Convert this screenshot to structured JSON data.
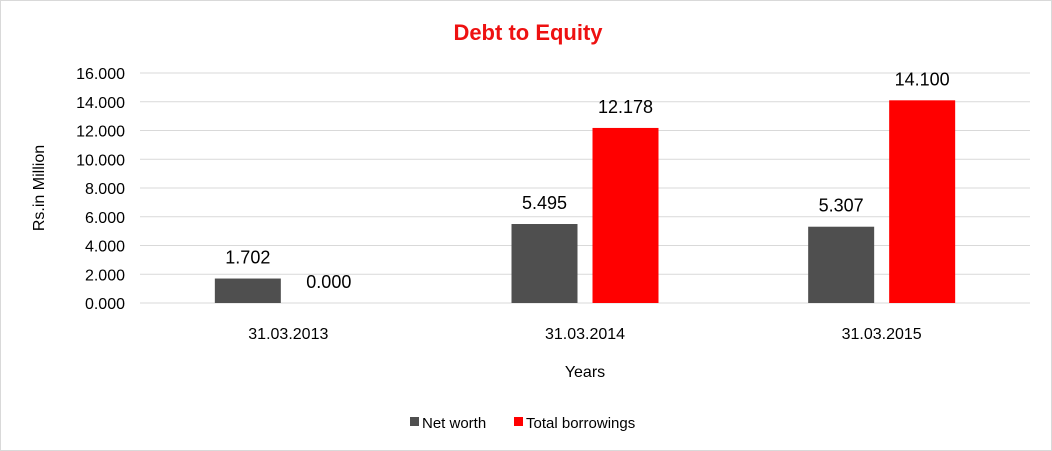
{
  "chart_data": {
    "type": "bar",
    "title": "Debt to Equity",
    "title_color": "#ee1111",
    "xlabel": "Years",
    "ylabel": "Rs.in Million",
    "categories": [
      "31.03.2013",
      "31.03.2014",
      "31.03.2015"
    ],
    "series": [
      {
        "name": "Net worth",
        "color": "#4f4f4f",
        "values": [
          1.702,
          5.495,
          5.307
        ]
      },
      {
        "name": "Total borrowings",
        "color": "#ff0000",
        "values": [
          0.0,
          12.178,
          14.1
        ]
      }
    ],
    "ylim": [
      0,
      16
    ],
    "yticks": [
      0,
      2,
      4,
      6,
      8,
      10,
      12,
      14,
      16
    ],
    "y_tick_labels": [
      "0.000",
      "2.000",
      "4.000",
      "6.000",
      "8.000",
      "10.000",
      "12.000",
      "14.000",
      "16.000"
    ],
    "data_labels": [
      [
        "1.702",
        "5.495",
        "5.307"
      ],
      [
        "0.000",
        "12.178",
        "14.100"
      ]
    ],
    "grid": true,
    "gridline_color": "#d9d9d9",
    "legend": "bottom-center"
  }
}
